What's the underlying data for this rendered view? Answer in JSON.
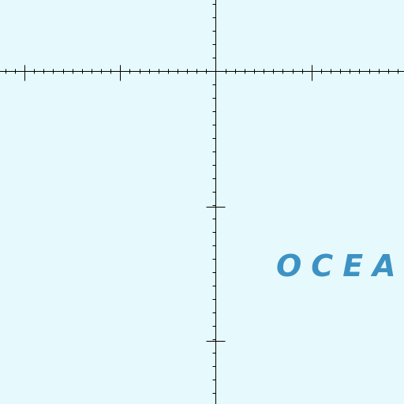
{
  "map": {
    "background_color": "#e6f9fc",
    "graticule_color": "#000000",
    "water_label": "OCEA",
    "water_label_color": "#3d92c4"
  }
}
